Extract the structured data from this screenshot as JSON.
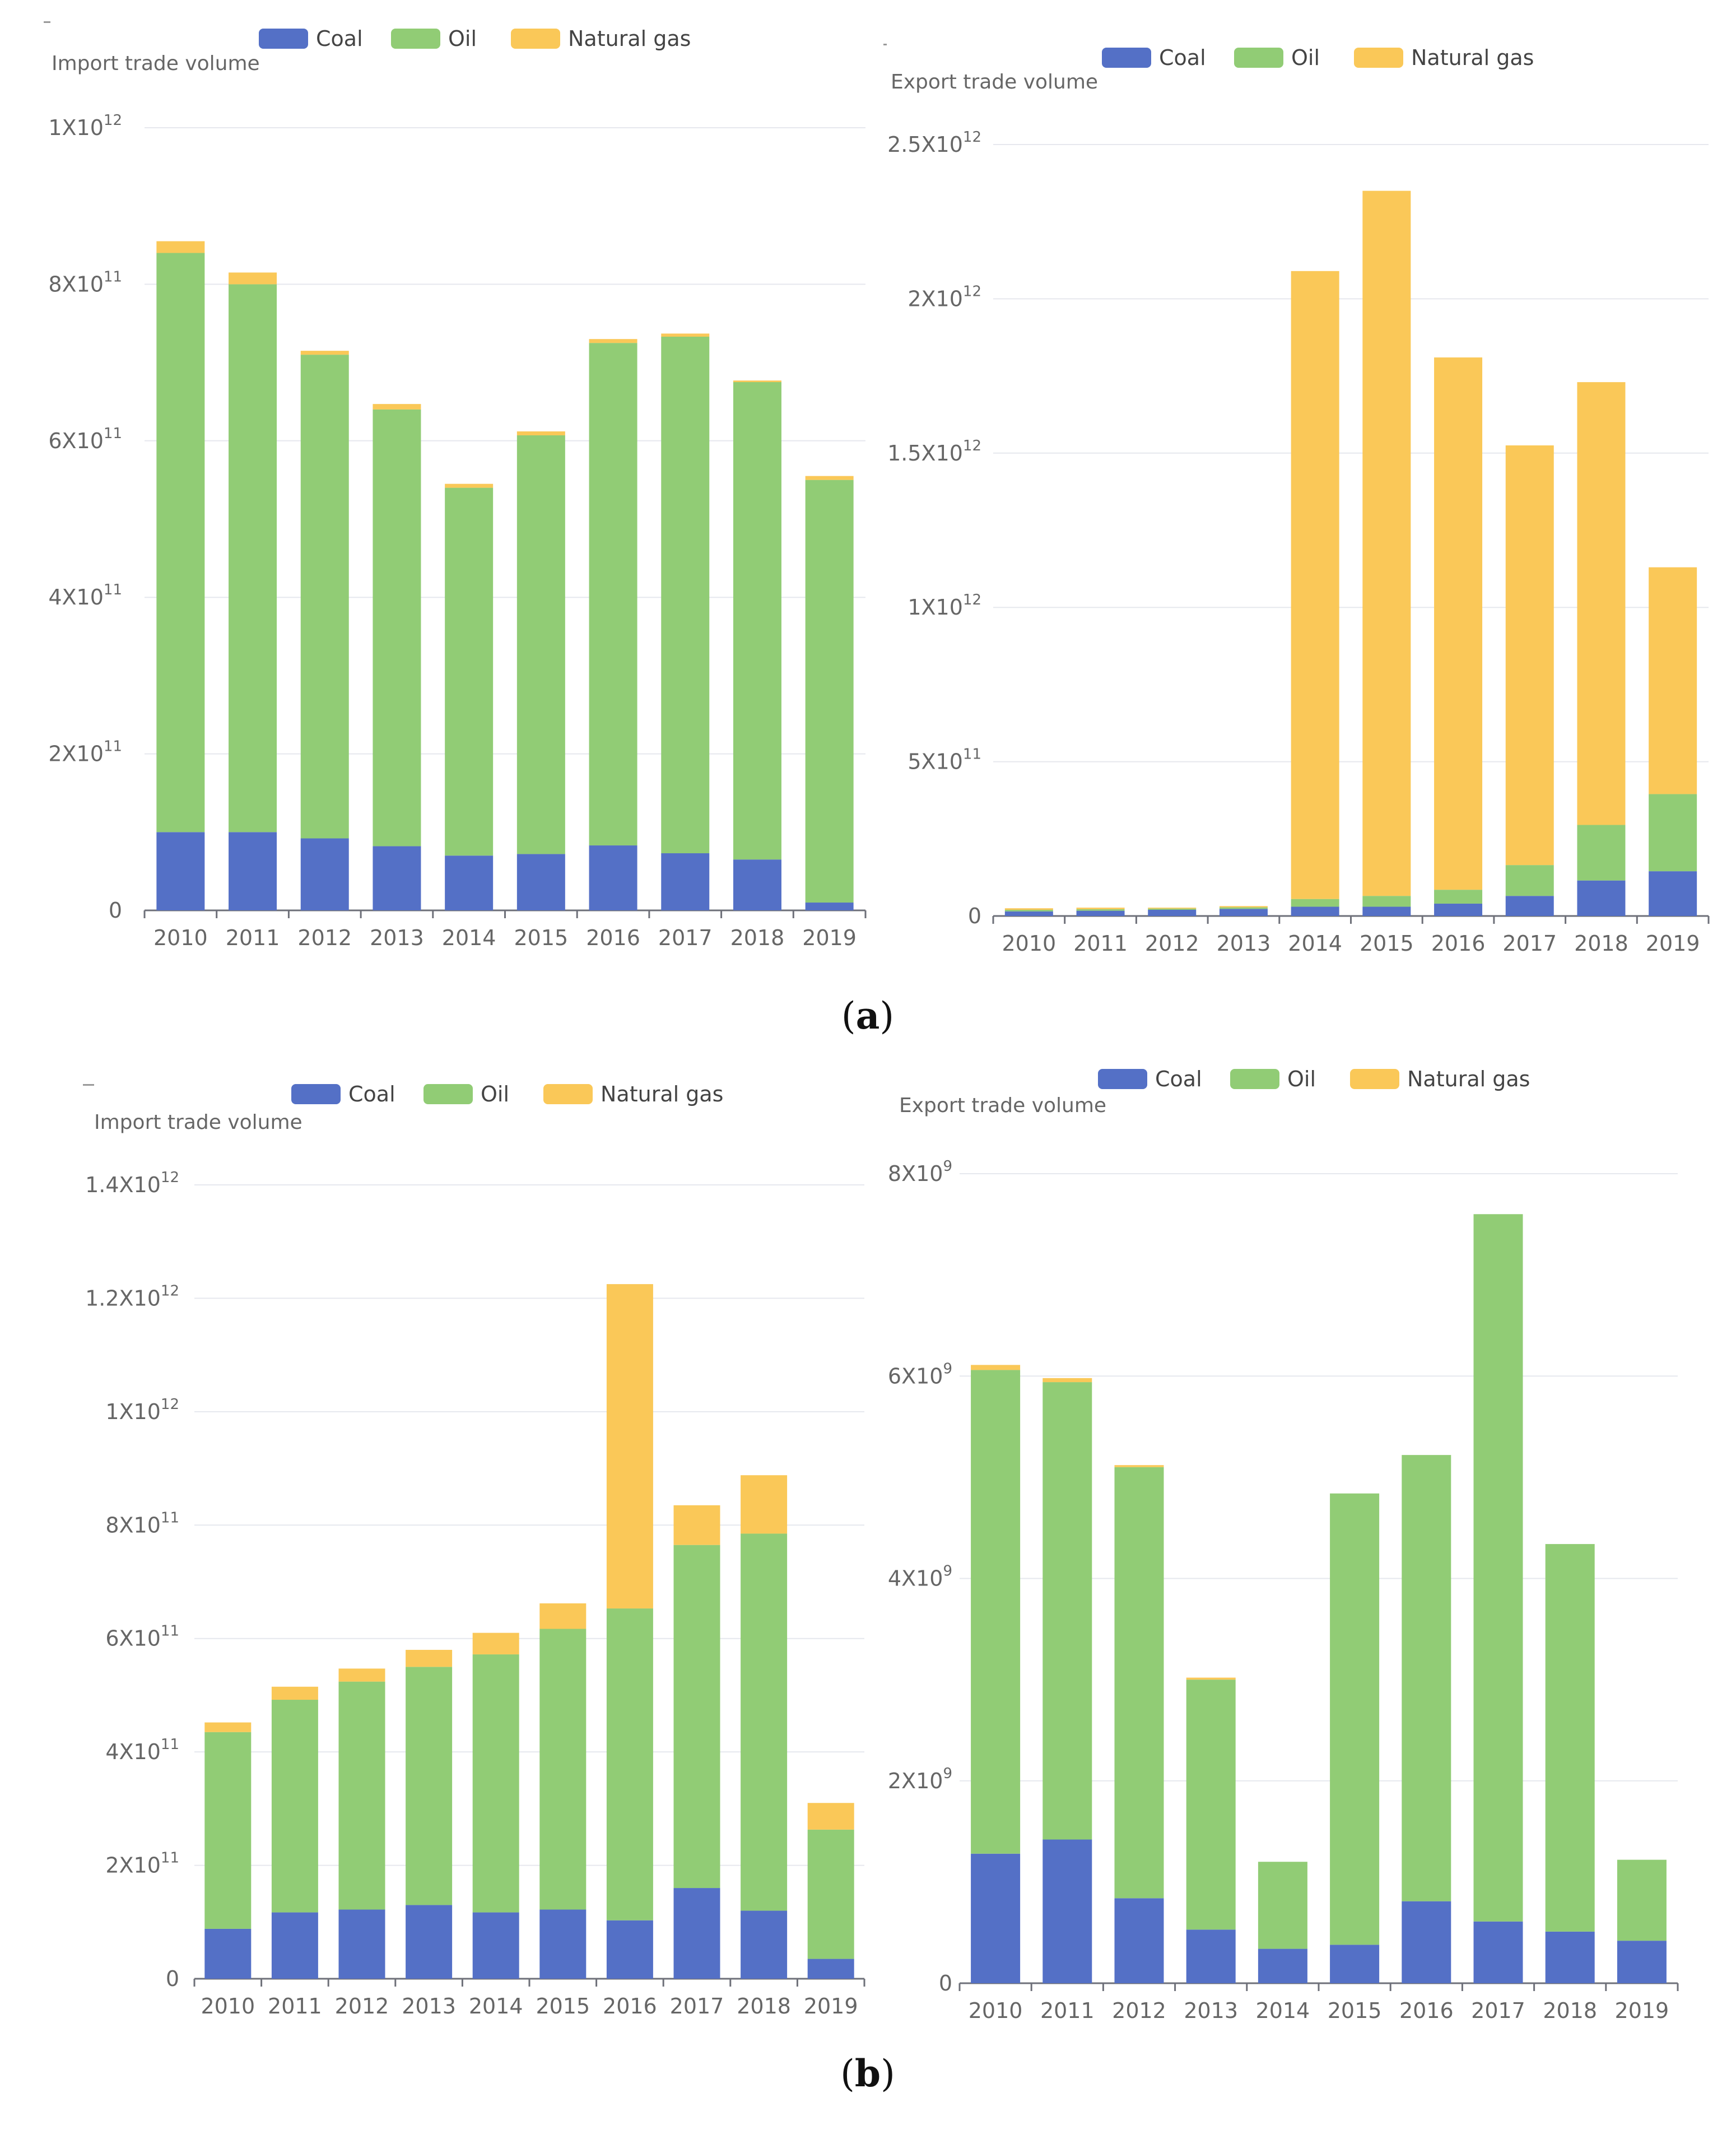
{
  "colors": {
    "coal": "#5470c6",
    "oil": "#91cc75",
    "natural_gas": "#fac858",
    "grid": "#e6e8ee",
    "axis": "#6e7079"
  },
  "figure": {
    "label_a": "(a)",
    "label_b": "(b)",
    "label_a_letter": "a",
    "label_b_letter": "b",
    "paren_open": "(",
    "paren_close": ")"
  },
  "chart_data": [
    {
      "id": "a-import",
      "type": "bar",
      "stacked": true,
      "title": "Import trade volume",
      "categories": [
        "2010",
        "2011",
        "2012",
        "2013",
        "2014",
        "2015",
        "2016",
        "2017",
        "2018",
        "2019"
      ],
      "series": [
        {
          "name": "Coal",
          "values": [
            100000000000.0,
            100000000000.0,
            92000000000.0,
            82000000000.0,
            70000000000.0,
            72000000000.0,
            83000000000.0,
            73000000000.0,
            65000000000.0,
            10000000000.0
          ]
        },
        {
          "name": "Oil",
          "values": [
            740000000000.0,
            700000000000.0,
            618000000000.0,
            558000000000.0,
            470000000000.0,
            535000000000.0,
            642000000000.0,
            660000000000.0,
            610000000000.0,
            540000000000.0
          ]
        },
        {
          "name": "Natural gas",
          "values": [
            15000000000.0,
            15000000000.0,
            5000000000.0,
            7000000000.0,
            5000000000.0,
            5000000000.0,
            5000000000.0,
            4000000000.0,
            2000000000.0,
            5000000000.0
          ]
        }
      ],
      "y_ticks": [
        {
          "v": 0,
          "base": "0",
          "exp": ""
        },
        {
          "v": 200000000000.0,
          "base": "2X10",
          "exp": "11"
        },
        {
          "v": 400000000000.0,
          "base": "4X10",
          "exp": "11"
        },
        {
          "v": 600000000000.0,
          "base": "6X10",
          "exp": "11"
        },
        {
          "v": 800000000000.0,
          "base": "8X10",
          "exp": "11"
        },
        {
          "v": 1000000000000.0,
          "base": "1X10",
          "exp": "12"
        }
      ],
      "ylim": [
        0,
        1000000000000.0
      ]
    },
    {
      "id": "a-export",
      "type": "bar",
      "stacked": true,
      "title": "Export trade volume",
      "categories": [
        "2010",
        "2011",
        "2012",
        "2013",
        "2014",
        "2015",
        "2016",
        "2017",
        "2018",
        "2019"
      ],
      "series": [
        {
          "name": "Coal",
          "values": [
            15000000000.0,
            17000000000.0,
            20000000000.0,
            23000000000.0,
            30000000000.0,
            30000000000.0,
            40000000000.0,
            65000000000.0,
            115000000000.0,
            145000000000.0
          ]
        },
        {
          "name": "Oil",
          "values": [
            5000000000.0,
            5000000000.0,
            4000000000.0,
            5000000000.0,
            25000000000.0,
            35000000000.0,
            45000000000.0,
            100000000000.0,
            180000000000.0,
            250000000000.0
          ]
        },
        {
          "name": "Natural gas",
          "values": [
            5000000000.0,
            5000000000.0,
            3000000000.0,
            4000000000.0,
            2035000000000.0,
            2285000000000.0,
            1725000000000.0,
            1360000000000.0,
            1435000000000.0,
            735000000000.0
          ]
        }
      ],
      "y_ticks": [
        {
          "v": 0,
          "base": "0",
          "exp": ""
        },
        {
          "v": 500000000000.0,
          "base": "5X10",
          "exp": "11"
        },
        {
          "v": 1000000000000.0,
          "base": "1X10",
          "exp": "12"
        },
        {
          "v": 1500000000000.0,
          "base": "1.5X10",
          "exp": "12"
        },
        {
          "v": 2000000000000.0,
          "base": "2X10",
          "exp": "12"
        },
        {
          "v": 2500000000000.0,
          "base": "2.5X10",
          "exp": "12"
        }
      ],
      "ylim": [
        0,
        2500000000000.0
      ]
    },
    {
      "id": "b-import",
      "type": "bar",
      "stacked": true,
      "title": "Import trade volume",
      "categories": [
        "2010",
        "2011",
        "2012",
        "2013",
        "2014",
        "2015",
        "2016",
        "2017",
        "2018",
        "2019"
      ],
      "series": [
        {
          "name": "Coal",
          "values": [
            88000000000.0,
            117000000000.0,
            122000000000.0,
            130000000000.0,
            117000000000.0,
            122000000000.0,
            103000000000.0,
            160000000000.0,
            120000000000.0,
            35000000000.0
          ]
        },
        {
          "name": "Oil",
          "values": [
            347000000000.0,
            375000000000.0,
            402000000000.0,
            420000000000.0,
            455000000000.0,
            495000000000.0,
            550000000000.0,
            605000000000.0,
            665000000000.0,
            228000000000.0
          ]
        },
        {
          "name": "Natural gas",
          "values": [
            17000000000.0,
            23000000000.0,
            23000000000.0,
            30000000000.0,
            38000000000.0,
            45000000000.0,
            572000000000.0,
            70000000000.0,
            103000000000.0,
            47000000000.0
          ]
        }
      ],
      "y_ticks": [
        {
          "v": 0,
          "base": "0",
          "exp": ""
        },
        {
          "v": 200000000000.0,
          "base": "2X10",
          "exp": "11"
        },
        {
          "v": 400000000000.0,
          "base": "4X10",
          "exp": "11"
        },
        {
          "v": 600000000000.0,
          "base": "6X10",
          "exp": "11"
        },
        {
          "v": 800000000000.0,
          "base": "8X10",
          "exp": "11"
        },
        {
          "v": 1000000000000.0,
          "base": "1X10",
          "exp": "12"
        },
        {
          "v": 1200000000000.0,
          "base": "1.2X10",
          "exp": "12"
        },
        {
          "v": 1400000000000.0,
          "base": "1.4X10",
          "exp": "12"
        }
      ],
      "ylim": [
        0,
        1400000000000.0
      ]
    },
    {
      "id": "b-export",
      "type": "bar",
      "stacked": true,
      "title": "Export trade volume",
      "categories": [
        "2010",
        "2011",
        "2012",
        "2013",
        "2014",
        "2015",
        "2016",
        "2017",
        "2018",
        "2019"
      ],
      "series": [
        {
          "name": "Coal",
          "values": [
            1280000000.0,
            1420000000.0,
            840000000.0,
            530000000.0,
            340000000.0,
            380000000.0,
            810000000.0,
            610000000.0,
            510000000.0,
            420000000.0
          ]
        },
        {
          "name": "Oil",
          "values": [
            4780000000.0,
            4520000000.0,
            4260000000.0,
            2470000000.0,
            860000000.0,
            4460000000.0,
            4410000000.0,
            6990000000.0,
            3830000000.0,
            800000000.0
          ]
        },
        {
          "name": "Natural gas",
          "values": [
            50000000.0,
            40000000.0,
            20000000.0,
            20000000.0,
            0.0,
            0.0,
            0.0,
            0.0,
            0.0,
            0.0
          ]
        }
      ],
      "y_ticks": [
        {
          "v": 0,
          "base": "0",
          "exp": ""
        },
        {
          "v": 2000000000.0,
          "base": "2X10",
          "exp": "9"
        },
        {
          "v": 4000000000.0,
          "base": "4X10",
          "exp": "9"
        },
        {
          "v": 6000000000.0,
          "base": "6X10",
          "exp": "9"
        },
        {
          "v": 8000000000.0,
          "base": "8X10",
          "exp": "9"
        }
      ],
      "ylim": [
        0,
        8000000000.0
      ]
    }
  ]
}
